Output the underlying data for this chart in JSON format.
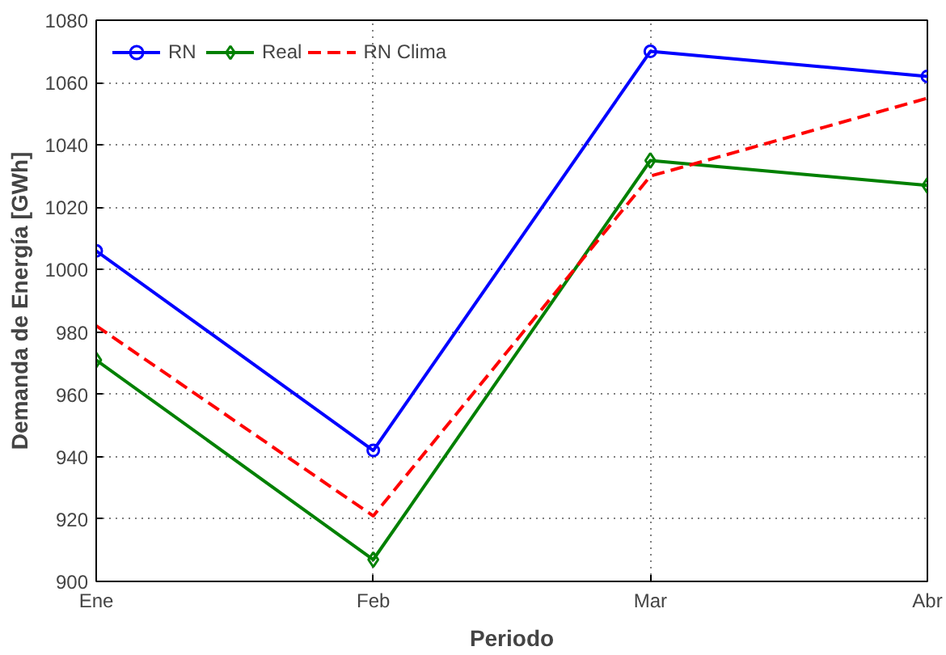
{
  "chart_data": {
    "type": "line",
    "xlabel": "Periodo",
    "ylabel": "Demanda de Energía [GWh]",
    "categories": [
      "Ene",
      "Feb",
      "Mar",
      "Abr"
    ],
    "ylim": [
      900,
      1080
    ],
    "yticks": [
      900,
      920,
      940,
      960,
      980,
      1000,
      1020,
      1040,
      1060,
      1080
    ],
    "grid": true,
    "legend": "top left",
    "series": [
      {
        "name": "RN",
        "color": "#0000ff",
        "marker": "circle",
        "line_style": "solid",
        "values": [
          1006,
          942,
          1070,
          1062
        ]
      },
      {
        "name": "Real",
        "color": "#008000",
        "marker": "diamond",
        "line_style": "solid",
        "values": [
          971,
          907,
          1035,
          1027
        ]
      },
      {
        "name": "RN Clima",
        "color": "#ff0000",
        "marker": "none",
        "line_style": "dashed",
        "values": [
          982,
          921,
          1030,
          1055
        ]
      }
    ]
  }
}
